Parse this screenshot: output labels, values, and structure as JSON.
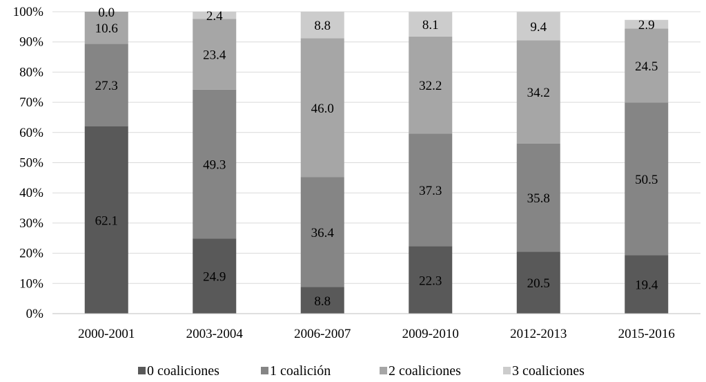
{
  "chart_data": {
    "type": "bar",
    "stacked": true,
    "percent_stacked": true,
    "categories": [
      "2000-2001",
      "2003-2004",
      "2006-2007",
      "2009-2010",
      "2012-2013",
      "2015-2016"
    ],
    "series": [
      {
        "name": "0 coaliciones",
        "color": "#595959",
        "values": [
          62.1,
          24.9,
          8.8,
          22.3,
          20.5,
          19.4
        ]
      },
      {
        "name": "1 coalición",
        "color": "#858585",
        "values": [
          27.3,
          49.3,
          36.4,
          37.3,
          35.8,
          50.5
        ]
      },
      {
        "name": "2 coaliciones",
        "color": "#a6a6a6",
        "values": [
          10.6,
          23.4,
          46.0,
          32.2,
          34.2,
          24.5
        ]
      },
      {
        "name": "3 coaliciones",
        "color": "#cccccc",
        "values": [
          0.0,
          2.4,
          8.8,
          8.1,
          9.4,
          2.9
        ]
      }
    ],
    "value_labels": [
      [
        "62.1",
        "24.9",
        "8.8",
        "22.3",
        "20.5",
        "19.4"
      ],
      [
        "27.3",
        "49.3",
        "36.4",
        "37.3",
        "35.8",
        "50.5"
      ],
      [
        "10.6",
        "23.4",
        "46.0",
        "32.2",
        "34.2",
        "24.5"
      ],
      [
        "0.0",
        "2.4",
        "8.8",
        "8.1",
        "9.4",
        "2.9"
      ]
    ],
    "y_ticks": [
      "0%",
      "10%",
      "20%",
      "30%",
      "40%",
      "50%",
      "60%",
      "70%",
      "80%",
      "90%",
      "100%"
    ],
    "ylim": [
      0,
      100
    ],
    "grid": true,
    "legend_position": "bottom",
    "title": "",
    "xlabel": "",
    "ylabel": ""
  }
}
